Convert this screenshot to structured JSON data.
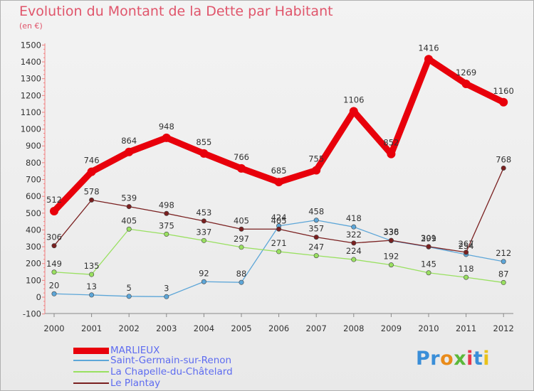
{
  "chart_data": {
    "type": "line",
    "title": "Evolution du Montant de la Dette par Habitant",
    "subtitle": "(en €)",
    "xlabel": "",
    "ylabel": "",
    "ylim": [
      -100,
      1500
    ],
    "yticks": [
      "-100",
      "0",
      "100",
      "200",
      "300",
      "400",
      "500",
      "600",
      "700",
      "800",
      "900",
      "1000",
      "1100",
      "1200",
      "1300",
      "1400",
      "1500"
    ],
    "categories": [
      "2000",
      "2001",
      "2002",
      "2003",
      "2004",
      "2005",
      "2006",
      "2007",
      "2008",
      "2009",
      "2010",
      "2011",
      "2012"
    ],
    "grid": false,
    "legend_position": "bottom-left",
    "series": [
      {
        "name": "MARLIEUX",
        "color": "#e8000b",
        "values": [
          512,
          746,
          864,
          948,
          855,
          766,
          685,
          755,
          1106,
          852,
          1416,
          1269,
          1160
        ],
        "labels": [
          "512",
          "746",
          "864",
          "948",
          "855",
          "766",
          "685",
          "755",
          "1106",
          "852",
          "1416",
          "1269",
          "1160"
        ]
      },
      {
        "name": "Saint-Germain-sur-Renon",
        "color": "#5da6d8",
        "values": [
          20,
          13,
          5,
          3,
          92,
          88,
          424,
          458,
          418,
          336,
          299,
          254,
          212
        ],
        "labels": [
          "20",
          "13",
          "5",
          "3",
          "92",
          "88",
          "424",
          "458",
          "418",
          "336",
          "299",
          "254",
          "212"
        ]
      },
      {
        "name": "La Chapelle-du-Châtelard",
        "color": "#99e060",
        "values": [
          149,
          135,
          405,
          375,
          337,
          297,
          271,
          247,
          224,
          192,
          145,
          118,
          87
        ],
        "labels": [
          "149",
          "135",
          "405",
          "375",
          "337",
          "297",
          "271",
          "247",
          "224",
          "192",
          "145",
          "118",
          "87"
        ]
      },
      {
        "name": "Le Plantay",
        "color": "#7a2020",
        "values": [
          306,
          578,
          539,
          498,
          453,
          405,
          405,
          357,
          322,
          338,
          301,
          267,
          768
        ],
        "labels": [
          "306",
          "578",
          "539",
          "498",
          "453",
          "405",
          "405",
          "357",
          "322",
          "338",
          "301",
          "267",
          "768"
        ]
      }
    ]
  },
  "logo": {
    "text": "Proxiti",
    "letters": [
      {
        "ch": "P",
        "color": "#3a8ed8"
      },
      {
        "ch": "r",
        "color": "#3a8ed8"
      },
      {
        "ch": "o",
        "color": "#e98b1a"
      },
      {
        "ch": "x",
        "color": "#5cb83a"
      },
      {
        "ch": "i",
        "color": "#e8374c"
      },
      {
        "ch": "t",
        "color": "#3a8ed8"
      },
      {
        "ch": "i",
        "color": "#e9c21a"
      }
    ]
  }
}
